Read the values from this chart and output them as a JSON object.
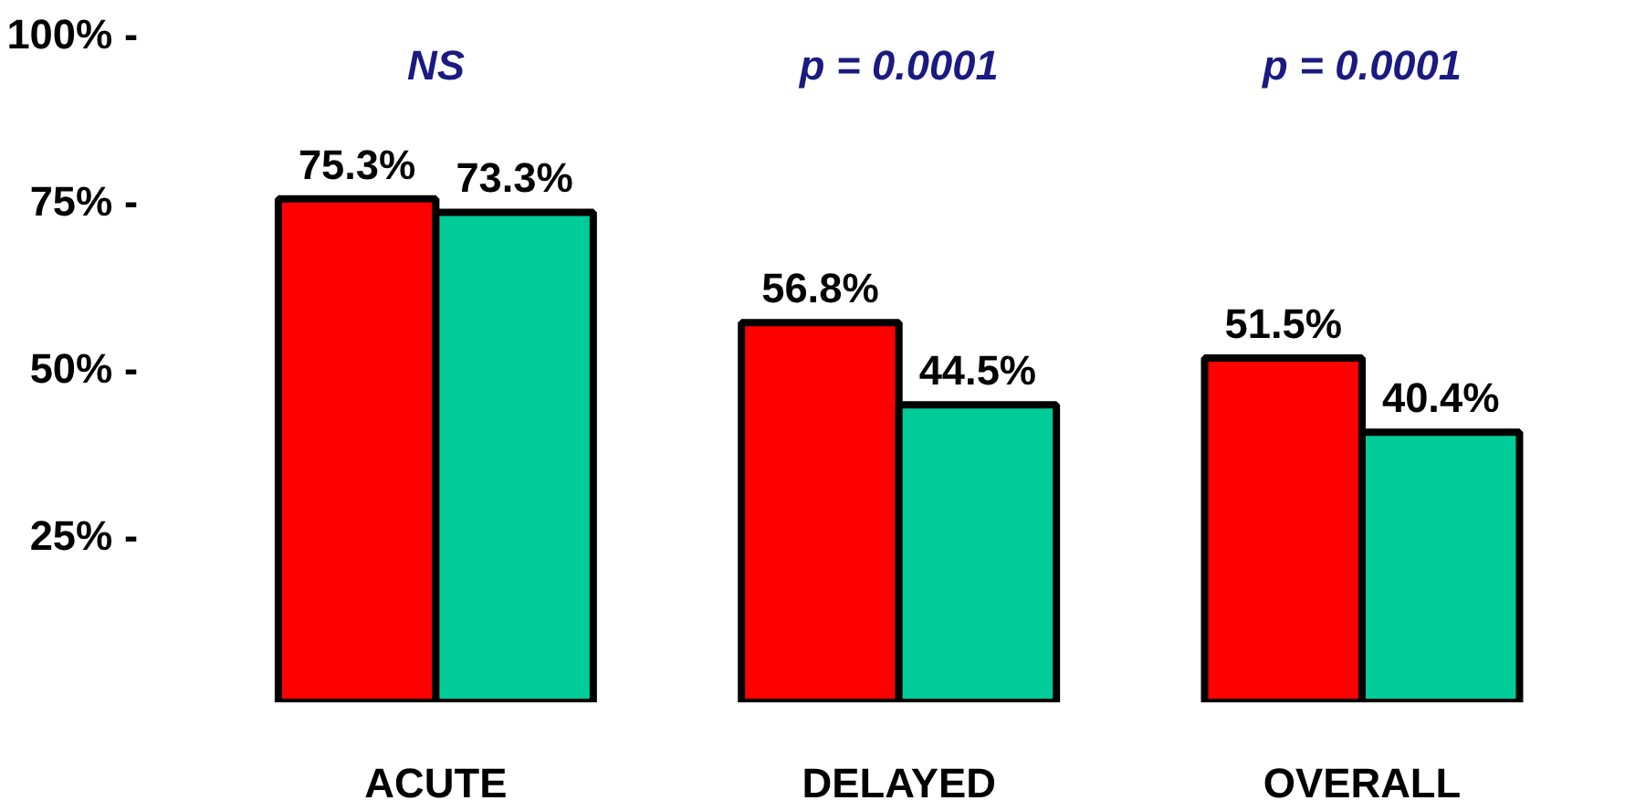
{
  "chart_data": {
    "type": "bar",
    "categories": [
      "ACUTE",
      "DELAYED",
      "OVERALL"
    ],
    "series": [
      {
        "color": "#ff0000",
        "values": [
          75.3,
          56.8,
          51.5
        ],
        "value_labels": [
          "75.3%",
          "56.8%",
          "51.5%"
        ]
      },
      {
        "color": "#00cc99",
        "values": [
          73.3,
          44.5,
          40.4
        ],
        "value_labels": [
          "73.3%",
          "44.5%",
          "40.4%"
        ]
      }
    ],
    "ylim": [
      0,
      100
    ],
    "yticks": [
      {
        "value": 25,
        "label": "25% -"
      },
      {
        "value": 50,
        "label": "50% -"
      },
      {
        "value": 75,
        "label": "75% -"
      },
      {
        "value": 100,
        "label": "100% -"
      }
    ],
    "annotations": [
      "NS",
      "p = 0.0001",
      "p = 0.0001"
    ]
  }
}
